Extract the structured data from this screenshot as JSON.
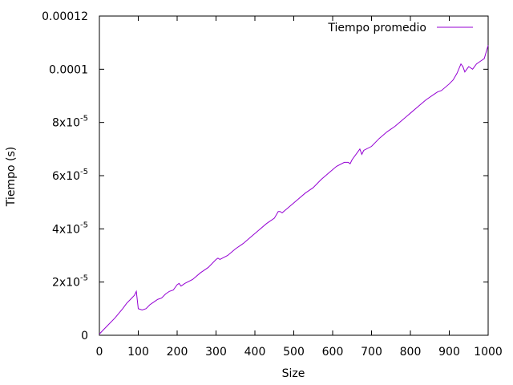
{
  "chart_data": {
    "type": "line",
    "xlabel": "Size",
    "ylabel": "Tiempo (s)",
    "xlim": [
      0,
      1000
    ],
    "ylim": [
      0,
      0.00012
    ],
    "grid": false,
    "legend_position": "top-right",
    "x_ticks": [
      "0",
      "100",
      "200",
      "300",
      "400",
      "500",
      "600",
      "700",
      "800",
      "900",
      "1000"
    ],
    "y_ticks": [
      {
        "base": "0",
        "exp": ""
      },
      {
        "base": "2x10",
        "exp": "-5"
      },
      {
        "base": "4x10",
        "exp": "-5"
      },
      {
        "base": "6x10",
        "exp": "-5"
      },
      {
        "base": "8x10",
        "exp": "-5"
      },
      {
        "base": "0.0001",
        "exp": ""
      },
      {
        "base": "0.00012",
        "exp": ""
      }
    ],
    "series": [
      {
        "name": "Tiempo promedio",
        "color": "#9400d3",
        "x": [
          0,
          20,
          40,
          60,
          70,
          80,
          90,
          95,
          100,
          110,
          120,
          130,
          140,
          150,
          160,
          170,
          180,
          190,
          200,
          205,
          210,
          220,
          240,
          260,
          280,
          300,
          305,
          310,
          330,
          350,
          370,
          390,
          410,
          430,
          450,
          460,
          465,
          470,
          490,
          510,
          530,
          550,
          570,
          590,
          610,
          630,
          640,
          645,
          650,
          670,
          675,
          680,
          700,
          720,
          740,
          760,
          780,
          800,
          820,
          840,
          860,
          870,
          880,
          900,
          910,
          920,
          930,
          935,
          940,
          945,
          950,
          960,
          970,
          980,
          990,
          1000
        ],
        "y": [
          5e-07,
          3.5e-06,
          6.5e-06,
          1e-05,
          1.2e-05,
          1.35e-05,
          1.5e-05,
          1.65e-05,
          1e-05,
          9.5e-06,
          1e-05,
          1.15e-05,
          1.25e-05,
          1.35e-05,
          1.4e-05,
          1.55e-05,
          1.65e-05,
          1.7e-05,
          1.9e-05,
          1.95e-05,
          1.85e-05,
          1.95e-05,
          2.1e-05,
          2.35e-05,
          2.55e-05,
          2.85e-05,
          2.9e-05,
          2.85e-05,
          3e-05,
          3.25e-05,
          3.45e-05,
          3.7e-05,
          3.95e-05,
          4.2e-05,
          4.4e-05,
          4.65e-05,
          4.65e-05,
          4.6e-05,
          4.85e-05,
          5.1e-05,
          5.35e-05,
          5.55e-05,
          5.85e-05,
          6.1e-05,
          6.35e-05,
          6.5e-05,
          6.5e-05,
          6.45e-05,
          6.6e-05,
          7e-05,
          6.8e-05,
          6.95e-05,
          7.1e-05,
          7.4e-05,
          7.65e-05,
          7.85e-05,
          8.1e-05,
          8.35e-05,
          8.6e-05,
          8.85e-05,
          9.05e-05,
          9.15e-05,
          9.2e-05,
          9.45e-05,
          9.6e-05,
          9.85e-05,
          0.000102,
          0.000101,
          9.9e-05,
          0.0001,
          0.000101,
          0.0001,
          0.000102,
          0.000103,
          0.000104,
          0.000109
        ]
      }
    ]
  }
}
